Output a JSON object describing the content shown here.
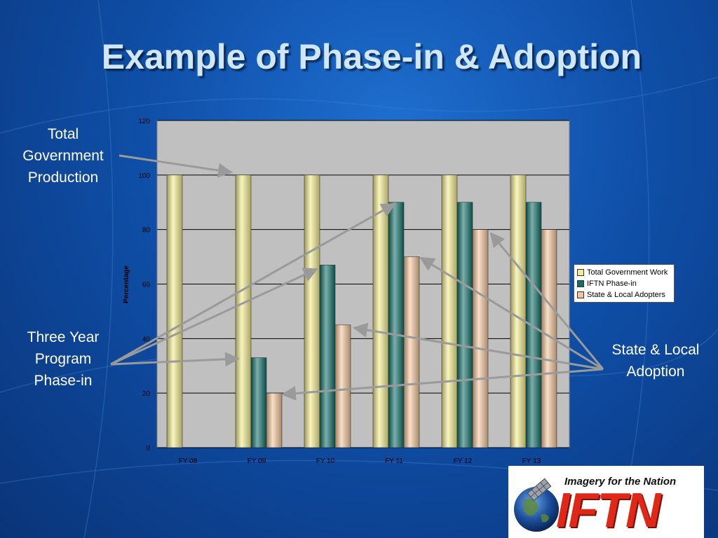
{
  "slide": {
    "title": "Example of Phase-in & Adoption"
  },
  "callouts": {
    "total_government": "Total\nGovernment\nProduction",
    "three_year": "Three Year\nProgram\nPhase-in",
    "state_local": "State & Local\nAdoption"
  },
  "logo": {
    "tagline": "Imagery for the Nation",
    "wordmark": "IFTN"
  },
  "colors": {
    "total_government_work": "#f2ec8c",
    "iftn_phase_in": "#0f6e66",
    "state_local_adopters": "#f2c49a",
    "plot_background": "#c0c0c0",
    "arrow": "#9a9a9a"
  },
  "chart_data": {
    "type": "bar",
    "title": "",
    "xlabel": "",
    "ylabel": "Percentage",
    "ylim": [
      0,
      120
    ],
    "yticks": [
      0,
      20,
      40,
      60,
      80,
      100,
      120
    ],
    "grid": true,
    "legend_position": "right",
    "categories": [
      "FY 08",
      "FY 09",
      "FY 10",
      "FY 11",
      "FY 12",
      "FY 13"
    ],
    "series": [
      {
        "name": "Total Government Work",
        "values": [
          100,
          100,
          100,
          100,
          100,
          100
        ]
      },
      {
        "name": "IFTN Phase-in",
        "values": [
          0,
          33,
          67,
          90,
          90,
          90
        ]
      },
      {
        "name": "State & Local Adopters",
        "values": [
          0,
          20,
          45,
          70,
          80,
          80
        ]
      }
    ]
  }
}
